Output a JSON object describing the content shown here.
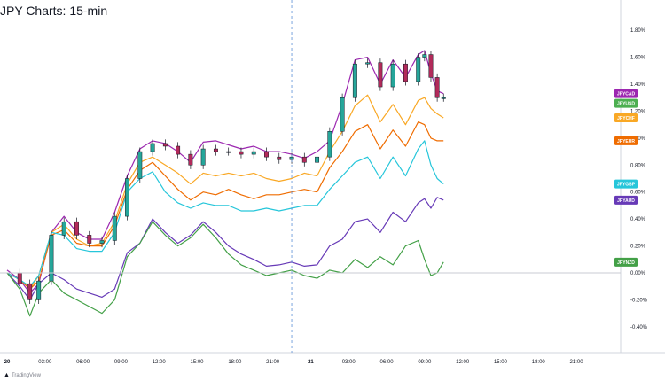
{
  "header": {
    "title": "JPY Charts: 15-min"
  },
  "footer": {
    "brand": "TradingView",
    "logo_icon": "tradingview-logo-icon"
  },
  "chart_data": {
    "type": "line",
    "title": "JPY Charts: 15-min",
    "x_tick_labels": [
      "20",
      "03:00",
      "06:00",
      "09:00",
      "12:00",
      "15:00",
      "18:00",
      "21:00",
      "21",
      "03:00",
      "06:00",
      "09:00",
      "12:00",
      "15:00",
      "18:00",
      "21:00"
    ],
    "x_tick_hours": [
      0,
      3,
      6,
      9,
      12,
      15,
      18,
      21,
      24,
      27,
      30,
      33,
      36,
      39,
      42,
      45
    ],
    "xlim_hours": [
      0,
      48.5
    ],
    "y_unit": "%",
    "y_tick_labels": [
      "-0.40%",
      "-0.20%",
      "0.00%",
      "0.20%",
      "0.40%",
      "0.60%",
      "0.80%",
      "1.00%",
      "1.20%",
      "1.40%",
      "1.60%",
      "1.80%"
    ],
    "y_ticks": [
      -0.4,
      -0.2,
      0.0,
      0.2,
      0.4,
      0.6,
      0.8,
      1.0,
      1.2,
      1.4,
      1.6,
      1.8
    ],
    "ylim": [
      -0.48,
      1.88
    ],
    "session_break_hour": 22.5,
    "grid": false,
    "zero_line": true,
    "series": [
      {
        "name": "JPYCAD",
        "color": "#9c27b0",
        "style": "line",
        "points": [
          [
            0,
            0.02
          ],
          [
            1,
            -0.05
          ],
          [
            1.8,
            -0.15
          ],
          [
            2.5,
            -0.08
          ],
          [
            3.5,
            0.3
          ],
          [
            4.5,
            0.42
          ],
          [
            5.5,
            0.3
          ],
          [
            6.5,
            0.25
          ],
          [
            7.5,
            0.25
          ],
          [
            8.5,
            0.45
          ],
          [
            9.5,
            0.72
          ],
          [
            10.5,
            0.92
          ],
          [
            11.5,
            0.98
          ],
          [
            12.5,
            0.96
          ],
          [
            13.5,
            0.9
          ],
          [
            14.5,
            0.82
          ],
          [
            15.5,
            0.97
          ],
          [
            16.5,
            0.98
          ],
          [
            17.5,
            0.95
          ],
          [
            18.5,
            0.92
          ],
          [
            19.5,
            0.94
          ],
          [
            20.5,
            0.9
          ],
          [
            21.5,
            0.9
          ],
          [
            22.5,
            0.88
          ],
          [
            23.5,
            0.85
          ],
          [
            24.5,
            0.9
          ],
          [
            25.5,
            0.98
          ],
          [
            26.5,
            1.25
          ],
          [
            27.5,
            1.58
          ],
          [
            28.5,
            1.6
          ],
          [
            29.5,
            1.4
          ],
          [
            30.5,
            1.58
          ],
          [
            31.5,
            1.45
          ],
          [
            32.5,
            1.62
          ],
          [
            33,
            1.65
          ],
          [
            33.5,
            1.48
          ],
          [
            34,
            1.35
          ],
          [
            34.5,
            1.33
          ]
        ]
      },
      {
        "name": "JPYUSD",
        "color": "#4caf50",
        "style": "candle",
        "points": [
          [
            0,
            0.0
          ],
          [
            1,
            -0.08
          ],
          [
            1.8,
            -0.2
          ],
          [
            2.5,
            -0.06
          ],
          [
            3.5,
            0.28
          ],
          [
            4.5,
            0.38
          ],
          [
            5.5,
            0.28
          ],
          [
            6.5,
            0.22
          ],
          [
            7.5,
            0.24
          ],
          [
            8.5,
            0.42
          ],
          [
            9.5,
            0.7
          ],
          [
            10.5,
            0.9
          ],
          [
            11.5,
            0.96
          ],
          [
            12.5,
            0.94
          ],
          [
            13.5,
            0.88
          ],
          [
            14.5,
            0.8
          ],
          [
            15.5,
            0.92
          ],
          [
            16.5,
            0.9
          ],
          [
            17.5,
            0.9
          ],
          [
            18.5,
            0.88
          ],
          [
            19.5,
            0.9
          ],
          [
            20.5,
            0.86
          ],
          [
            21.5,
            0.84
          ],
          [
            22.5,
            0.86
          ],
          [
            23.5,
            0.82
          ],
          [
            24.5,
            0.86
          ],
          [
            25.5,
            1.05
          ],
          [
            26.5,
            1.3
          ],
          [
            27.5,
            1.55
          ],
          [
            28.5,
            1.56
          ],
          [
            29.5,
            1.38
          ],
          [
            30.5,
            1.55
          ],
          [
            31.5,
            1.42
          ],
          [
            32.5,
            1.6
          ],
          [
            33,
            1.62
          ],
          [
            33.5,
            1.45
          ],
          [
            34,
            1.3
          ],
          [
            34.5,
            1.3
          ]
        ]
      },
      {
        "name": "JPYCHF",
        "color": "#f9a825",
        "style": "line",
        "points": [
          [
            0,
            0.0
          ],
          [
            1,
            -0.05
          ],
          [
            1.8,
            -0.12
          ],
          [
            2.5,
            -0.02
          ],
          [
            3.5,
            0.3
          ],
          [
            4.5,
            0.36
          ],
          [
            5.5,
            0.25
          ],
          [
            6.5,
            0.2
          ],
          [
            7.5,
            0.22
          ],
          [
            8.5,
            0.38
          ],
          [
            9.5,
            0.66
          ],
          [
            10.5,
            0.82
          ],
          [
            11.5,
            0.86
          ],
          [
            12.5,
            0.8
          ],
          [
            13.5,
            0.74
          ],
          [
            14.5,
            0.66
          ],
          [
            15.5,
            0.74
          ],
          [
            16.5,
            0.72
          ],
          [
            17.5,
            0.74
          ],
          [
            18.5,
            0.72
          ],
          [
            19.5,
            0.74
          ],
          [
            20.5,
            0.7
          ],
          [
            21.5,
            0.68
          ],
          [
            22.5,
            0.7
          ],
          [
            23.5,
            0.74
          ],
          [
            24.5,
            0.72
          ],
          [
            25.5,
            0.9
          ],
          [
            26.5,
            1.05
          ],
          [
            27.5,
            1.24
          ],
          [
            28.5,
            1.32
          ],
          [
            29.5,
            1.12
          ],
          [
            30.5,
            1.25
          ],
          [
            31.5,
            1.1
          ],
          [
            32.5,
            1.28
          ],
          [
            33,
            1.3
          ],
          [
            33.5,
            1.22
          ],
          [
            34,
            1.18
          ],
          [
            34.5,
            1.15
          ]
        ]
      },
      {
        "name": "JPYEUR",
        "color": "#ef6c00",
        "style": "line",
        "points": [
          [
            0,
            0.0
          ],
          [
            1,
            -0.05
          ],
          [
            1.8,
            -0.12
          ],
          [
            2.5,
            -0.06
          ],
          [
            3.5,
            0.28
          ],
          [
            4.5,
            0.32
          ],
          [
            5.5,
            0.22
          ],
          [
            6.5,
            0.2
          ],
          [
            7.5,
            0.2
          ],
          [
            8.5,
            0.35
          ],
          [
            9.5,
            0.62
          ],
          [
            10.5,
            0.76
          ],
          [
            11.5,
            0.82
          ],
          [
            12.5,
            0.72
          ],
          [
            13.5,
            0.62
          ],
          [
            14.5,
            0.54
          ],
          [
            15.5,
            0.6
          ],
          [
            16.5,
            0.58
          ],
          [
            17.5,
            0.62
          ],
          [
            18.5,
            0.58
          ],
          [
            19.5,
            0.55
          ],
          [
            20.5,
            0.58
          ],
          [
            21.5,
            0.58
          ],
          [
            22.5,
            0.6
          ],
          [
            23.5,
            0.62
          ],
          [
            24.5,
            0.6
          ],
          [
            25.5,
            0.78
          ],
          [
            26.5,
            0.9
          ],
          [
            27.5,
            1.05
          ],
          [
            28.5,
            1.1
          ],
          [
            29.5,
            0.92
          ],
          [
            30.5,
            1.06
          ],
          [
            31.5,
            0.94
          ],
          [
            32.5,
            1.12
          ],
          [
            33,
            1.1
          ],
          [
            33.5,
            1.0
          ],
          [
            34,
            0.98
          ],
          [
            34.5,
            0.98
          ]
        ]
      },
      {
        "name": "JPYGBP",
        "color": "#26c6da",
        "style": "line",
        "points": [
          [
            0,
            0.0
          ],
          [
            1,
            -0.05
          ],
          [
            1.8,
            -0.1
          ],
          [
            2.5,
            -0.02
          ],
          [
            3.5,
            0.3
          ],
          [
            4.5,
            0.28
          ],
          [
            5.5,
            0.18
          ],
          [
            6.5,
            0.16
          ],
          [
            7.5,
            0.16
          ],
          [
            8.5,
            0.3
          ],
          [
            9.5,
            0.6
          ],
          [
            10.5,
            0.7
          ],
          [
            11.5,
            0.75
          ],
          [
            12.5,
            0.6
          ],
          [
            13.5,
            0.52
          ],
          [
            14.5,
            0.48
          ],
          [
            15.5,
            0.52
          ],
          [
            16.5,
            0.5
          ],
          [
            17.5,
            0.5
          ],
          [
            18.5,
            0.46
          ],
          [
            19.5,
            0.46
          ],
          [
            20.5,
            0.48
          ],
          [
            21.5,
            0.46
          ],
          [
            22.5,
            0.48
          ],
          [
            23.5,
            0.5
          ],
          [
            24.5,
            0.5
          ],
          [
            25.5,
            0.62
          ],
          [
            26.5,
            0.72
          ],
          [
            27.5,
            0.82
          ],
          [
            28.5,
            0.86
          ],
          [
            29.5,
            0.7
          ],
          [
            30.5,
            0.86
          ],
          [
            31.5,
            0.72
          ],
          [
            32.5,
            0.92
          ],
          [
            33,
            0.98
          ],
          [
            33.5,
            0.8
          ],
          [
            34,
            0.7
          ],
          [
            34.5,
            0.66
          ]
        ]
      },
      {
        "name": "JPYAUD",
        "color": "#673ab7",
        "style": "line",
        "points": [
          [
            0,
            0.0
          ],
          [
            1,
            -0.1
          ],
          [
            1.8,
            -0.2
          ],
          [
            2.5,
            -0.08
          ],
          [
            3.5,
            0.0
          ],
          [
            4.5,
            -0.05
          ],
          [
            5.5,
            -0.12
          ],
          [
            6.5,
            -0.15
          ],
          [
            7.5,
            -0.18
          ],
          [
            8.5,
            -0.12
          ],
          [
            9.5,
            0.15
          ],
          [
            10.5,
            0.22
          ],
          [
            11.5,
            0.4
          ],
          [
            12.5,
            0.3
          ],
          [
            13.5,
            0.22
          ],
          [
            14.5,
            0.28
          ],
          [
            15.5,
            0.38
          ],
          [
            16.5,
            0.3
          ],
          [
            17.5,
            0.2
          ],
          [
            18.5,
            0.14
          ],
          [
            19.5,
            0.1
          ],
          [
            20.5,
            0.05
          ],
          [
            21.5,
            0.06
          ],
          [
            22.5,
            0.08
          ],
          [
            23.5,
            0.05
          ],
          [
            24.5,
            0.06
          ],
          [
            25.5,
            0.2
          ],
          [
            26.5,
            0.25
          ],
          [
            27.5,
            0.38
          ],
          [
            28.5,
            0.4
          ],
          [
            29.5,
            0.3
          ],
          [
            30.5,
            0.45
          ],
          [
            31.5,
            0.38
          ],
          [
            32.5,
            0.52
          ],
          [
            33,
            0.55
          ],
          [
            33.5,
            0.48
          ],
          [
            34,
            0.56
          ],
          [
            34.5,
            0.54
          ]
        ]
      },
      {
        "name": "JPYNZD",
        "color": "#43a047",
        "style": "line",
        "points": [
          [
            0,
            0.0
          ],
          [
            1,
            -0.12
          ],
          [
            1.8,
            -0.32
          ],
          [
            2.5,
            -0.15
          ],
          [
            3.5,
            -0.05
          ],
          [
            4.5,
            -0.15
          ],
          [
            5.5,
            -0.2
          ],
          [
            6.5,
            -0.25
          ],
          [
            7.5,
            -0.3
          ],
          [
            8.5,
            -0.2
          ],
          [
            9.5,
            0.12
          ],
          [
            10.5,
            0.22
          ],
          [
            11.5,
            0.38
          ],
          [
            12.5,
            0.28
          ],
          [
            13.5,
            0.2
          ],
          [
            14.5,
            0.26
          ],
          [
            15.5,
            0.36
          ],
          [
            16.5,
            0.26
          ],
          [
            17.5,
            0.14
          ],
          [
            18.5,
            0.06
          ],
          [
            19.5,
            0.02
          ],
          [
            20.5,
            -0.02
          ],
          [
            21.5,
            0.0
          ],
          [
            22.5,
            0.02
          ],
          [
            23.5,
            -0.02
          ],
          [
            24.5,
            -0.04
          ],
          [
            25.5,
            0.02
          ],
          [
            26.5,
            0.0
          ],
          [
            27.5,
            0.1
          ],
          [
            28.5,
            0.04
          ],
          [
            29.5,
            0.12
          ],
          [
            30.5,
            0.06
          ],
          [
            31.5,
            0.2
          ],
          [
            32.5,
            0.24
          ],
          [
            33,
            0.1
          ],
          [
            33.5,
            -0.02
          ],
          [
            34,
            0.0
          ],
          [
            34.5,
            0.08
          ]
        ]
      }
    ]
  }
}
